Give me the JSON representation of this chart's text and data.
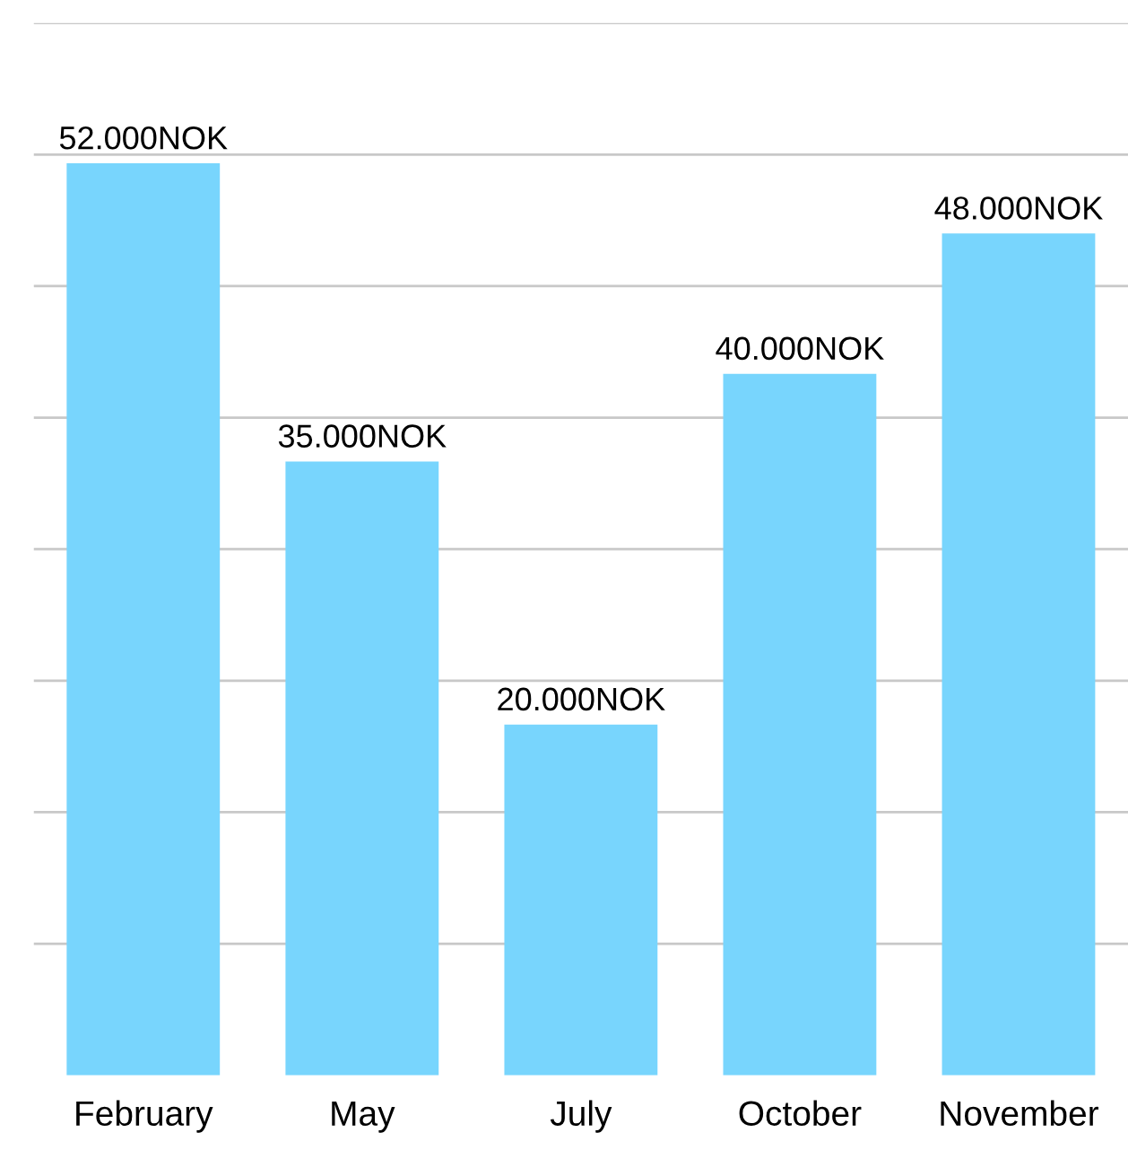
{
  "chart_data": {
    "type": "bar",
    "categories": [
      "February",
      "May",
      "July",
      "October",
      "November"
    ],
    "values": [
      52000,
      35000,
      20000,
      40000,
      48000
    ],
    "value_labels": [
      "52.000NOK",
      "35.000NOK",
      "20.000NOK",
      "40.000NOK",
      "48.000NOK"
    ],
    "color": "#78d5fd",
    "ylim": [
      0,
      60000
    ],
    "yticks": [
      {
        "value": 7500,
        "label": null
      },
      {
        "value": 15000,
        "label": null
      },
      {
        "value": 22500,
        "label": null
      },
      {
        "value": 30000,
        "label": null
      },
      {
        "value": 37500,
        "label": null
      },
      {
        "value": 45000,
        "label": null
      },
      {
        "value": 52500,
        "label": null
      },
      {
        "value": 60000,
        "label": null
      }
    ],
    "grid": "y",
    "tick_labels": "x"
  }
}
